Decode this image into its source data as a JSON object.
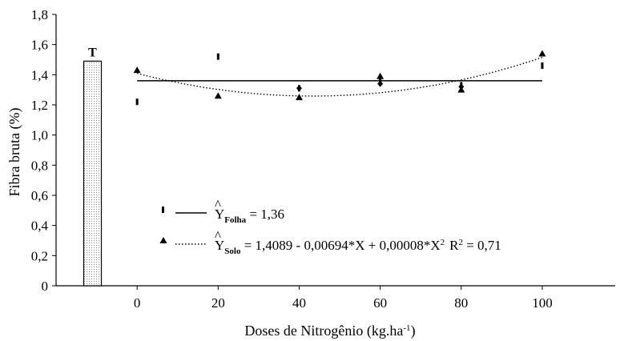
{
  "chart_data": {
    "type": "scatter",
    "xlabel": "Doses de Nitrogênio (kg.ha",
    "xlabel_sup": "-1",
    "xlabel_end": ")",
    "ylabel": "Fibra bruta (%)",
    "xlim": [
      -20,
      118
    ],
    "ylim": [
      0,
      1.8
    ],
    "x_ticks": [
      0,
      20,
      40,
      60,
      80,
      100
    ],
    "x_tick_labels": [
      "0",
      "20",
      "40",
      "60",
      "80",
      "100"
    ],
    "y_ticks": [
      0,
      0.2,
      0.4,
      0.6,
      0.8,
      1.0,
      1.2,
      1.4,
      1.6,
      1.8
    ],
    "y_tick_labels": [
      "0",
      "0,2",
      "0,4",
      "0,6",
      "0,8",
      "1,0",
      "1,2",
      "1,4",
      "1,6",
      "1,8"
    ],
    "grid": false,
    "reference_bar": {
      "label": "T",
      "x": -11,
      "value": 1.49
    },
    "series": [
      {
        "marker": "dash",
        "x": [
          0,
          20,
          40,
          60,
          80,
          100
        ],
        "y": [
          1.22,
          1.52,
          1.31,
          1.37,
          1.33,
          1.46
        ],
        "fit": {
          "type": "constant",
          "value": 1.36
        }
      },
      {
        "marker": "triangle",
        "x": [
          0,
          20,
          40,
          60,
          80,
          100
        ],
        "y": [
          1.43,
          1.26,
          1.25,
          1.39,
          1.3,
          1.54
        ],
        "fit": {
          "type": "quadratic",
          "a": 1.4089,
          "b": -0.00694,
          "c": 8e-05
        }
      },
      {
        "marker": "diamond",
        "x": [
          40,
          60,
          80
        ],
        "y": [
          1.31,
          1.34,
          1.32
        ]
      }
    ],
    "legend": {
      "placement": "bottom-center",
      "entries": [
        {
          "y_hat": "Y",
          "sub": "Folha",
          "rest": " = 1,36"
        },
        {
          "y_hat": "Y",
          "sub": "Solo",
          "rest": " = 1,4089 - 0,00694*X + 0,00008*X",
          "sup": "2",
          "r2_label": "R",
          "r2_sup": "2",
          "r2_rest": " = 0,71"
        }
      ]
    }
  }
}
